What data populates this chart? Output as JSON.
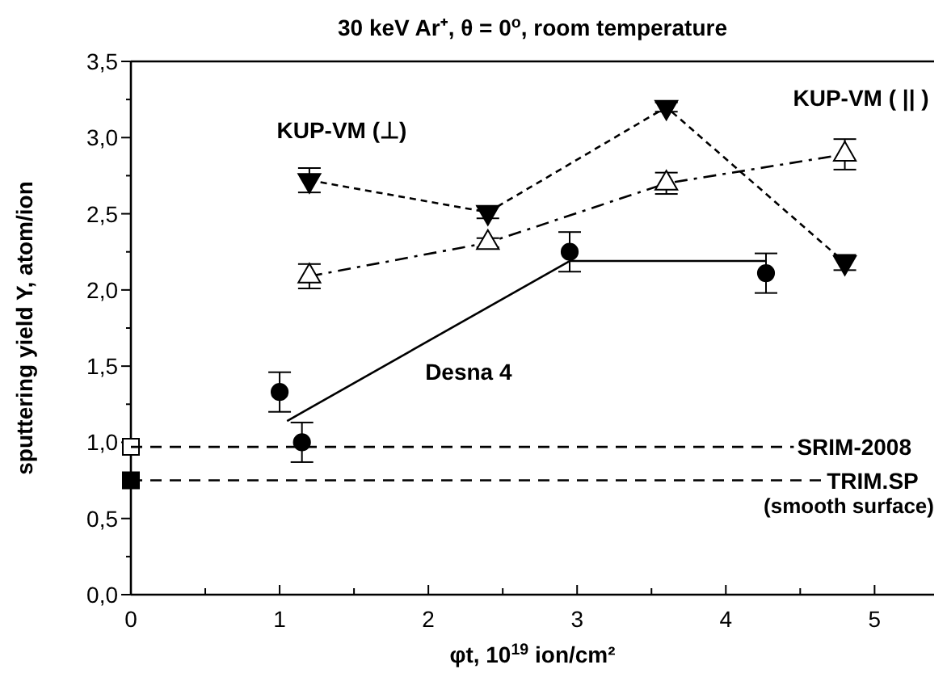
{
  "chart_data": {
    "type": "line",
    "title": "30 keV Ar⁺, θ = 0$^{o}$, room temperature",
    "xlabel": "φt, 10$^{19}$ ion/cm²",
    "ylabel": "sputtering yield Y, atom/ion",
    "xlim": [
      0,
      5.4
    ],
    "ylim": [
      0,
      3.5
    ],
    "xticks": [
      0,
      {
        "value": 0.5,
        "label": null
      },
      1,
      {
        "value": 1.5,
        "label": null
      },
      2,
      {
        "value": 2.5,
        "label": null
      },
      3,
      {
        "value": 3.5,
        "label": null
      },
      4,
      {
        "value": 4.5,
        "label": null
      },
      5
    ],
    "yticks": [
      {
        "value": 0,
        "label": "0,0"
      },
      {
        "value": 0.25,
        "label": null
      },
      {
        "value": 0.5,
        "label": "0,5"
      },
      {
        "value": 0.75,
        "label": null
      },
      {
        "value": 1,
        "label": "1,0"
      },
      {
        "value": 1.25,
        "label": null
      },
      {
        "value": 1.5,
        "label": "1,5"
      },
      {
        "value": 1.75,
        "label": null
      },
      {
        "value": 2,
        "label": "2,0"
      },
      {
        "value": 2.25,
        "label": null
      },
      {
        "value": 2.5,
        "label": "2,5"
      },
      {
        "value": 2.75,
        "label": null
      },
      {
        "value": 3,
        "label": "3,0"
      },
      {
        "value": 3.25,
        "label": null
      },
      {
        "value": 3.5,
        "label": "3,5"
      }
    ],
    "grid": false,
    "legend": false,
    "series": [
      {
        "name": "KUP-VM (⊥)",
        "color": "#000000",
        "marker": "triangle-down",
        "line_style": "dotted",
        "x": [
          1.2,
          2.4,
          3.6,
          4.8
        ],
        "values": [
          2.72,
          2.51,
          3.2,
          2.18
        ],
        "errors": [
          0.08,
          0.04,
          0.03,
          0.05
        ]
      },
      {
        "name": "KUP-VM ( || )",
        "color": "#ffffff",
        "marker": "triangle",
        "line_style": "dashdot",
        "x": [
          1.2,
          2.4,
          3.6,
          4.8
        ],
        "values": [
          2.09,
          2.31,
          2.7,
          2.89
        ],
        "errors": [
          0.08,
          0.03,
          0.07,
          0.1
        ]
      },
      {
        "type": "scatter",
        "color": "#000000",
        "marker": "circle",
        "x": [
          1.0,
          1.15,
          2.95,
          4.27
        ],
        "values": [
          1.33,
          1.0,
          2.25,
          2.11
        ],
        "errors": [
          0.13,
          0.13,
          0.13,
          0.13
        ]
      },
      {
        "name": "Desna 4",
        "type": "line",
        "color": "#000000",
        "marker": "none",
        "line_style": "solid",
        "x": [
          1.05,
          2.95,
          4.27
        ],
        "values": [
          1.14,
          2.19,
          2.19
        ]
      },
      {
        "type": "scatter",
        "color": "#ffffff",
        "marker": "square",
        "x": [
          0
        ],
        "values": [
          0.97
        ]
      },
      {
        "type": "scatter",
        "color": "#000000",
        "marker": "square",
        "x": [
          0
        ],
        "values": [
          0.75
        ]
      }
    ],
    "ref_lines": [
      {
        "axis": "y",
        "value": 0.97,
        "label": "SRIM-2008",
        "line_style": "dashed"
      },
      {
        "axis": "y",
        "value": 0.75,
        "label": "TRIM.SP",
        "line_style": "dashed"
      }
    ],
    "annotations": [
      "(smooth surface)"
    ]
  }
}
